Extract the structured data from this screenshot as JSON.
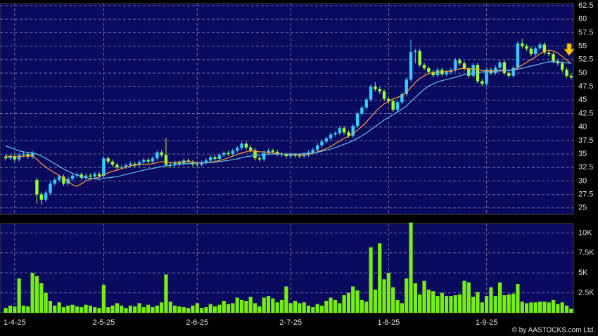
{
  "chart_data": {
    "type": "candlestick",
    "copyright": "© by AASTOCKS.com Ltd.",
    "categories": [
      null,
      null,
      "1-4-25",
      null,
      null,
      null,
      null,
      null,
      null,
      null,
      null,
      null,
      null,
      null,
      null,
      null,
      null,
      null,
      null,
      null,
      null,
      null,
      "2-5-25",
      null,
      null,
      null,
      null,
      null,
      null,
      null,
      null,
      null,
      null,
      null,
      null,
      null,
      null,
      null,
      null,
      null,
      null,
      null,
      null,
      "2-6-25",
      null,
      null,
      null,
      null,
      null,
      null,
      null,
      null,
      null,
      null,
      null,
      null,
      null,
      null,
      null,
      null,
      null,
      null,
      null,
      null,
      "2-7-25",
      null,
      null,
      null,
      null,
      null,
      null,
      null,
      null,
      null,
      null,
      null,
      null,
      null,
      null,
      null,
      null,
      null,
      null,
      null,
      null,
      null,
      "1-8-25",
      null,
      null,
      null,
      null,
      null,
      null,
      null,
      null,
      null,
      null,
      null,
      null,
      null,
      null,
      null,
      null,
      null,
      null,
      null,
      null,
      null,
      "1-9-25",
      null,
      null,
      null,
      null,
      null,
      null,
      null,
      null,
      null,
      null,
      null,
      null,
      null,
      null,
      null,
      null,
      null,
      null,
      null
    ],
    "open": [
      34.5,
      34.2,
      34.6,
      34.0,
      34.8,
      35.0,
      34.5,
      30.2,
      27.5,
      26.5,
      27.8,
      29.5,
      30.2,
      30.8,
      29.5,
      30.4,
      31.0,
      31.2,
      30.6,
      31.0,
      30.8,
      31.3,
      30.9,
      34.2,
      33.6,
      33.0,
      32.5,
      32.6,
      32.9,
      33.2,
      33.0,
      33.5,
      33.9,
      33.6,
      34.2,
      35.3,
      34.8,
      33.0,
      32.9,
      33.4,
      33.2,
      33.8,
      33.5,
      33.1,
      33.0,
      33.4,
      33.8,
      34.4,
      34.1,
      34.8,
      35.2,
      35.0,
      35.6,
      36.1,
      36.9,
      36.2,
      35.7,
      34.2,
      34.0,
      35.2,
      35.6,
      35.4,
      35.0,
      34.9,
      34.6,
      34.8,
      34.7,
      34.6,
      34.9,
      35.3,
      35.8,
      36.6,
      37.3,
      37.9,
      38.6,
      38.9,
      39.8,
      39.0,
      38.4,
      40.2,
      42.5,
      43.6,
      45.1,
      47.5,
      47.0,
      46.6,
      45.2,
      44.8,
      43.2,
      44.6,
      46.1,
      48.8,
      53.9,
      54.1,
      51.5,
      50.9,
      50.2,
      49.6,
      50.6,
      49.8,
      50.2,
      50.6,
      52.4,
      51.8,
      50.8,
      49.5,
      51.5,
      48.5,
      48.0,
      50.6,
      50.0,
      51.0,
      52.0,
      50.0,
      49.5,
      51.0,
      55.5,
      55.0,
      54.5,
      53.5,
      54.6,
      55.3,
      53.8,
      53.5,
      52.2,
      51.8,
      50.6,
      49.5
    ],
    "high": [
      34.9,
      34.9,
      35.0,
      35.2,
      35.4,
      35.4,
      35.6,
      30.6,
      27.9,
      28.2,
      29.9,
      30.6,
      31.2,
      31.2,
      30.8,
      31.4,
      31.6,
      31.6,
      31.4,
      31.4,
      31.7,
      31.7,
      34.6,
      34.6,
      34.0,
      33.4,
      33.0,
      33.3,
      33.6,
      33.6,
      33.9,
      34.3,
      34.3,
      34.6,
      35.7,
      35.7,
      38.0,
      33.4,
      33.8,
      33.8,
      34.2,
      34.2,
      33.9,
      33.5,
      33.8,
      34.2,
      34.8,
      34.8,
      35.2,
      35.6,
      35.6,
      36.0,
      36.5,
      37.3,
      37.3,
      36.6,
      36.1,
      34.6,
      35.6,
      36.0,
      36.0,
      35.8,
      35.4,
      35.3,
      35.2,
      35.2,
      35.1,
      35.3,
      35.7,
      36.2,
      37.0,
      37.7,
      38.3,
      39.0,
      39.3,
      40.2,
      40.2,
      39.4,
      40.6,
      42.9,
      44.0,
      45.5,
      47.9,
      48.3,
      47.4,
      47.0,
      45.6,
      45.2,
      45.0,
      46.5,
      49.2,
      56.2,
      54.5,
      54.5,
      51.9,
      51.3,
      50.6,
      51.0,
      51.0,
      50.6,
      51.0,
      52.8,
      52.8,
      52.2,
      51.2,
      51.9,
      51.9,
      48.9,
      51.0,
      51.0,
      51.4,
      52.4,
      52.4,
      50.4,
      51.4,
      55.9,
      56.3,
      55.4,
      54.9,
      55.0,
      55.7,
      55.7,
      54.2,
      53.9,
      52.6,
      52.2,
      51.0,
      49.9
    ],
    "low": [
      33.8,
      33.8,
      33.6,
      33.6,
      34.4,
      34.1,
      34.1,
      25.8,
      25.6,
      26.1,
      27.4,
      29.1,
      29.8,
      29.1,
      29.1,
      30.0,
      30.6,
      30.2,
      30.2,
      30.4,
      30.4,
      30.5,
      30.5,
      33.2,
      32.6,
      32.1,
      32.1,
      32.2,
      32.5,
      32.6,
      32.6,
      33.1,
      33.2,
      33.2,
      33.8,
      34.4,
      32.6,
      32.5,
      32.5,
      32.8,
      32.8,
      33.1,
      32.7,
      32.6,
      32.6,
      33.0,
      33.4,
      33.7,
      33.7,
      34.4,
      34.6,
      34.6,
      35.2,
      35.7,
      35.8,
      35.3,
      33.8,
      33.6,
      33.6,
      34.8,
      35.0,
      34.6,
      34.5,
      34.2,
      34.2,
      34.3,
      34.2,
      34.2,
      34.5,
      34.9,
      35.4,
      36.2,
      36.9,
      37.5,
      38.2,
      38.5,
      38.6,
      38.0,
      38.0,
      39.8,
      42.1,
      43.2,
      44.7,
      46.6,
      46.2,
      44.8,
      44.4,
      42.8,
      42.8,
      44.2,
      45.7,
      48.4,
      51.8,
      51.1,
      50.5,
      49.8,
      49.2,
      49.2,
      49.4,
      49.4,
      49.8,
      50.2,
      51.4,
      50.4,
      49.1,
      49.1,
      48.1,
      47.6,
      47.6,
      49.6,
      49.6,
      50.6,
      49.6,
      49.1,
      49.1,
      50.6,
      54.6,
      54.1,
      53.1,
      53.1,
      54.2,
      53.4,
      53.1,
      51.8,
      51.4,
      50.2,
      49.1,
      48.8
    ],
    "close": [
      34.2,
      34.6,
      34.0,
      34.8,
      35.0,
      34.5,
      35.2,
      27.5,
      26.5,
      27.8,
      29.5,
      30.2,
      30.8,
      29.5,
      30.4,
      31.0,
      31.2,
      30.6,
      31.0,
      30.8,
      31.3,
      30.9,
      34.2,
      33.6,
      33.0,
      32.5,
      32.6,
      32.9,
      33.2,
      33.0,
      33.5,
      33.9,
      33.6,
      34.2,
      35.3,
      34.8,
      33.0,
      32.9,
      33.4,
      33.2,
      33.8,
      33.5,
      33.1,
      33.0,
      33.4,
      33.8,
      34.4,
      34.1,
      34.8,
      35.2,
      35.0,
      35.6,
      36.1,
      36.9,
      36.2,
      35.7,
      34.2,
      34.0,
      35.2,
      35.6,
      35.4,
      35.0,
      34.9,
      34.6,
      34.8,
      34.7,
      34.6,
      34.9,
      35.3,
      35.8,
      36.6,
      37.3,
      37.9,
      38.6,
      38.9,
      39.8,
      39.0,
      38.4,
      40.2,
      42.5,
      43.6,
      45.1,
      47.5,
      47.0,
      46.6,
      45.2,
      44.8,
      43.2,
      44.6,
      46.1,
      48.8,
      53.9,
      54.1,
      51.5,
      50.9,
      50.2,
      49.6,
      50.6,
      49.8,
      50.2,
      50.6,
      52.4,
      51.8,
      50.8,
      49.5,
      51.5,
      48.5,
      48.0,
      50.6,
      50.0,
      51.0,
      52.0,
      50.0,
      49.5,
      51.0,
      55.5,
      55.0,
      54.5,
      53.5,
      54.6,
      55.3,
      53.8,
      53.5,
      52.2,
      51.8,
      50.6,
      49.5,
      49.2
    ],
    "up_color": "#33ccff",
    "down_color": "#99ff33",
    "series": [
      {
        "color": "#ff9933",
        "values": [
          34.6,
          34.6,
          34.5,
          34.5,
          34.6,
          34.6,
          34.7,
          34.0,
          33.2,
          32.6,
          32.0,
          31.5,
          31.0,
          30.5,
          29.9,
          29.3,
          29.0,
          29.5,
          30.0,
          30.3,
          30.5,
          30.7,
          31.2,
          31.5,
          31.8,
          32.0,
          32.3,
          32.5,
          32.8,
          32.9,
          33.0,
          33.1,
          33.1,
          33.2,
          33.4,
          33.6,
          33.5,
          33.4,
          33.4,
          33.5,
          33.6,
          33.6,
          33.5,
          33.4,
          33.3,
          33.4,
          33.5,
          33.6,
          33.8,
          34.0,
          34.3,
          34.6,
          34.9,
          35.2,
          35.4,
          35.6,
          35.5,
          35.4,
          35.4,
          35.3,
          35.2,
          35.1,
          35.0,
          34.9,
          34.9,
          34.9,
          34.8,
          34.8,
          34.9,
          35.1,
          35.4,
          35.7,
          36.0,
          36.4,
          36.9,
          37.4,
          37.9,
          38.3,
          38.8,
          39.4,
          40.1,
          40.9,
          41.9,
          42.8,
          43.6,
          44.3,
          44.8,
          45.2,
          45.5,
          45.8,
          46.4,
          47.3,
          48.3,
          49.0,
          49.5,
          49.9,
          50.1,
          50.2,
          50.3,
          50.3,
          50.4,
          50.6,
          50.8,
          50.9,
          50.8,
          50.8,
          50.7,
          50.5,
          50.4,
          50.4,
          50.4,
          50.5,
          50.6,
          50.5,
          50.6,
          51.0,
          51.5,
          52.0,
          52.5,
          53.0,
          53.6,
          54.0,
          54.3,
          54.1,
          53.7,
          53.1,
          52.4,
          51.8
        ]
      },
      {
        "color": "#66bbee",
        "values": [
          36.5,
          36.2,
          35.9,
          35.6,
          35.4,
          35.3,
          35.2,
          35.0,
          34.6,
          34.2,
          33.7,
          33.2,
          32.7,
          32.2,
          31.8,
          31.4,
          31.1,
          30.8,
          30.6,
          30.5,
          30.4,
          30.3,
          30.5,
          30.6,
          30.7,
          30.8,
          31.0,
          31.2,
          31.4,
          31.6,
          31.8,
          32.0,
          32.2,
          32.3,
          32.5,
          32.7,
          32.8,
          32.9,
          33.0,
          33.1,
          33.2,
          33.2,
          33.3,
          33.3,
          33.4,
          33.4,
          33.4,
          33.5,
          33.6,
          33.7,
          33.8,
          34.0,
          34.1,
          34.3,
          34.5,
          34.6,
          34.7,
          34.8,
          34.9,
          35.0,
          35.0,
          35.0,
          35.0,
          35.0,
          35.0,
          35.0,
          35.0,
          35.1,
          35.1,
          35.2,
          35.3,
          35.5,
          35.7,
          35.9,
          36.2,
          36.5,
          36.8,
          37.1,
          37.5,
          37.9,
          38.4,
          38.9,
          39.5,
          40.1,
          40.7,
          41.3,
          41.8,
          42.3,
          42.8,
          43.3,
          43.9,
          44.7,
          45.5,
          46.3,
          47.0,
          47.6,
          48.0,
          48.4,
          48.6,
          48.8,
          49.0,
          49.2,
          49.5,
          49.7,
          49.9,
          50.0,
          50.1,
          50.2,
          50.3,
          50.3,
          50.3,
          50.4,
          50.5,
          50.5,
          50.6,
          50.7,
          50.9,
          51.1,
          51.3,
          51.5,
          51.7,
          51.9,
          52.1,
          52.1,
          52.1,
          52.0,
          51.9,
          51.8
        ]
      }
    ],
    "ylim": [
      23.8,
      62.9
    ],
    "yticks": [
      25,
      27.5,
      30,
      32.5,
      35,
      37.5,
      40,
      42.5,
      45,
      47.5,
      50,
      52.5,
      55,
      57.5,
      60,
      62.5
    ],
    "grid": true,
    "volume": {
      "type": "bar",
      "color": "#77ee11",
      "values": [
        600,
        900,
        800,
        4300,
        900,
        800,
        5000,
        4600,
        3700,
        2500,
        1500,
        900,
        1300,
        700,
        900,
        1000,
        800,
        700,
        1000,
        900,
        700,
        600,
        3500,
        700,
        900,
        1200,
        900,
        600,
        900,
        800,
        1200,
        700,
        1000,
        700,
        900,
        1300,
        4800,
        1400,
        900,
        800,
        700,
        600,
        900,
        1200,
        600,
        700,
        1100,
        800,
        1000,
        1500,
        1100,
        1200,
        1900,
        1600,
        1500,
        2000,
        1200,
        800,
        1900,
        2100,
        1800,
        1300,
        1600,
        3300,
        1200,
        1500,
        1200,
        1300,
        900,
        700,
        1100,
        900,
        1500,
        1900,
        1600,
        1200,
        2200,
        2500,
        3300,
        2800,
        1600,
        1400,
        8200,
        2900,
        8700,
        4200,
        5000,
        3200,
        1600,
        1200,
        4300,
        11300,
        3700,
        2300,
        4000,
        2900,
        2700,
        2100,
        2500,
        2100,
        2100,
        2200,
        2300,
        4000,
        3800,
        2000,
        2600,
        1300,
        2100,
        3200,
        2100,
        3800,
        2200,
        2300,
        2400,
        3600,
        1400,
        1200,
        1300,
        1300,
        1400,
        1400,
        1300,
        1600,
        1100,
        1300,
        900,
        500
      ],
      "ylim": [
        0,
        11000
      ],
      "yticks": [
        {
          "value": 2500,
          "label": "2.5K"
        },
        {
          "value": 5000,
          "label": "5K"
        },
        {
          "value": 7500,
          "label": "7.5K"
        },
        {
          "value": 10000,
          "label": "10K"
        }
      ]
    }
  }
}
